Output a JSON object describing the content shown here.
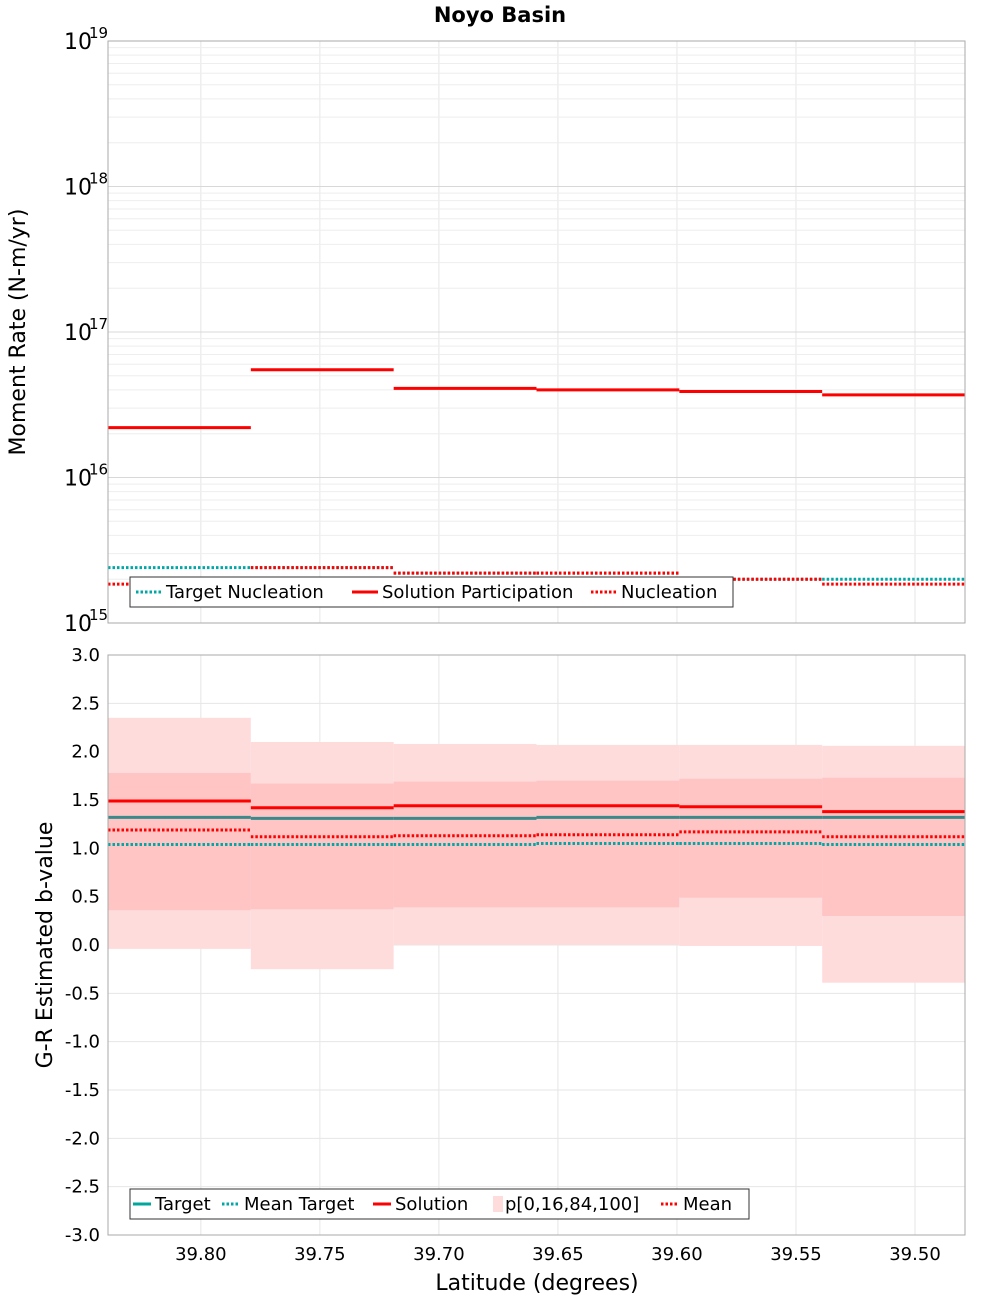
{
  "title": "Noyo Basin",
  "colors": {
    "target": "#00a7a7",
    "target_line": "#3a8a8c",
    "solution": "#ff0000",
    "band_outer": "#ffdcdc",
    "band_inner": "#ffc4c4",
    "grid": "#e6e6e6"
  },
  "chart_data": [
    {
      "type": "line",
      "panel": "top",
      "title": "Noyo Basin",
      "ylabel": "Moment Rate (N-m/yr)",
      "xlabel": "",
      "x_reversed": true,
      "xlim": [
        39.839,
        39.479
      ],
      "x_ticks": [
        39.8,
        39.75,
        39.7,
        39.65,
        39.6,
        39.55,
        39.5
      ],
      "y_scale": "log",
      "ylim": [
        1000000000000000.0,
        1e+19
      ],
      "y_tick_labels": [
        {
          "base": "10",
          "exp": "15"
        },
        {
          "base": "10",
          "exp": "16"
        },
        {
          "base": "10",
          "exp": "17"
        },
        {
          "base": "10",
          "exp": "18"
        },
        {
          "base": "10",
          "exp": "19"
        }
      ],
      "grid": true,
      "legend_position": "bottom-left",
      "segment_edges": [
        39.839,
        39.779,
        39.719,
        39.659,
        39.599,
        39.539,
        39.479
      ],
      "series": [
        {
          "name": "Target Nucleation",
          "style": "dotted",
          "color": "#00a7a7",
          "values": [
            2400000000000000.0,
            2400000000000000.0,
            2200000000000000.0,
            2200000000000000.0,
            2000000000000000.0,
            2000000000000000.0
          ]
        },
        {
          "name": "Solution Participation",
          "style": "solid",
          "color": "#ff0000",
          "values": [
            2.2e+16,
            5.5e+16,
            4.1e+16,
            4e+16,
            3.9e+16,
            3.7e+16
          ]
        },
        {
          "name": "Nucleation",
          "style": "dotted",
          "color": "#ff0000",
          "values": [
            1850000000000000.0,
            2400000000000000.0,
            2200000000000000.0,
            2200000000000000.0,
            2000000000000000.0,
            1850000000000000.0
          ]
        }
      ]
    },
    {
      "type": "line",
      "panel": "bottom",
      "ylabel": "G-R Estimated b-value",
      "xlabel": "Latitude (degrees)",
      "x_reversed": true,
      "xlim": [
        39.839,
        39.479
      ],
      "x_ticks": [
        39.8,
        39.75,
        39.7,
        39.65,
        39.6,
        39.55,
        39.5
      ],
      "x_tick_labels": [
        "39.80",
        "39.75",
        "39.70",
        "39.65",
        "39.60",
        "39.55",
        "39.50"
      ],
      "ylim": [
        -3.0,
        3.0
      ],
      "y_ticks": [
        -3.0,
        -2.5,
        -2.0,
        -1.5,
        -1.0,
        -0.5,
        0.0,
        0.5,
        1.0,
        1.5,
        2.0,
        2.5,
        3.0
      ],
      "y_tick_labels": [
        "-3.0",
        "-2.5",
        "-2.0",
        "-1.5",
        "-1.0",
        "-0.5",
        "0.0",
        "0.5",
        "1.0",
        "1.5",
        "2.0",
        "2.5",
        "3.0"
      ],
      "grid": true,
      "legend_position": "bottom-left",
      "segment_edges": [
        39.839,
        39.779,
        39.719,
        39.659,
        39.599,
        39.539,
        39.479
      ],
      "series": [
        {
          "name": "Target",
          "style": "solid",
          "color": "#3a8a8c",
          "values": [
            1.32,
            1.31,
            1.31,
            1.32,
            1.32,
            1.32
          ]
        },
        {
          "name": "Mean Target",
          "style": "dotted",
          "color": "#00a7a7",
          "values": [
            1.04,
            1.04,
            1.04,
            1.05,
            1.05,
            1.04
          ]
        },
        {
          "name": "Solution",
          "style": "solid",
          "color": "#ff0000",
          "values": [
            1.49,
            1.42,
            1.44,
            1.44,
            1.43,
            1.38
          ]
        },
        {
          "name": "Mean",
          "style": "dotted",
          "color": "#ff0000",
          "values": [
            1.19,
            1.12,
            1.13,
            1.14,
            1.17,
            1.12
          ]
        }
      ],
      "band": {
        "name": "p[0,16,84,100]",
        "p0": [
          -0.04,
          -0.25,
          0.0,
          0.0,
          -0.01,
          -0.39
        ],
        "p16": [
          0.36,
          0.37,
          0.39,
          0.39,
          0.49,
          0.3
        ],
        "p84": [
          1.78,
          1.67,
          1.69,
          1.7,
          1.72,
          1.73
        ],
        "p100": [
          2.35,
          2.1,
          2.08,
          2.07,
          2.07,
          2.06
        ]
      }
    }
  ]
}
